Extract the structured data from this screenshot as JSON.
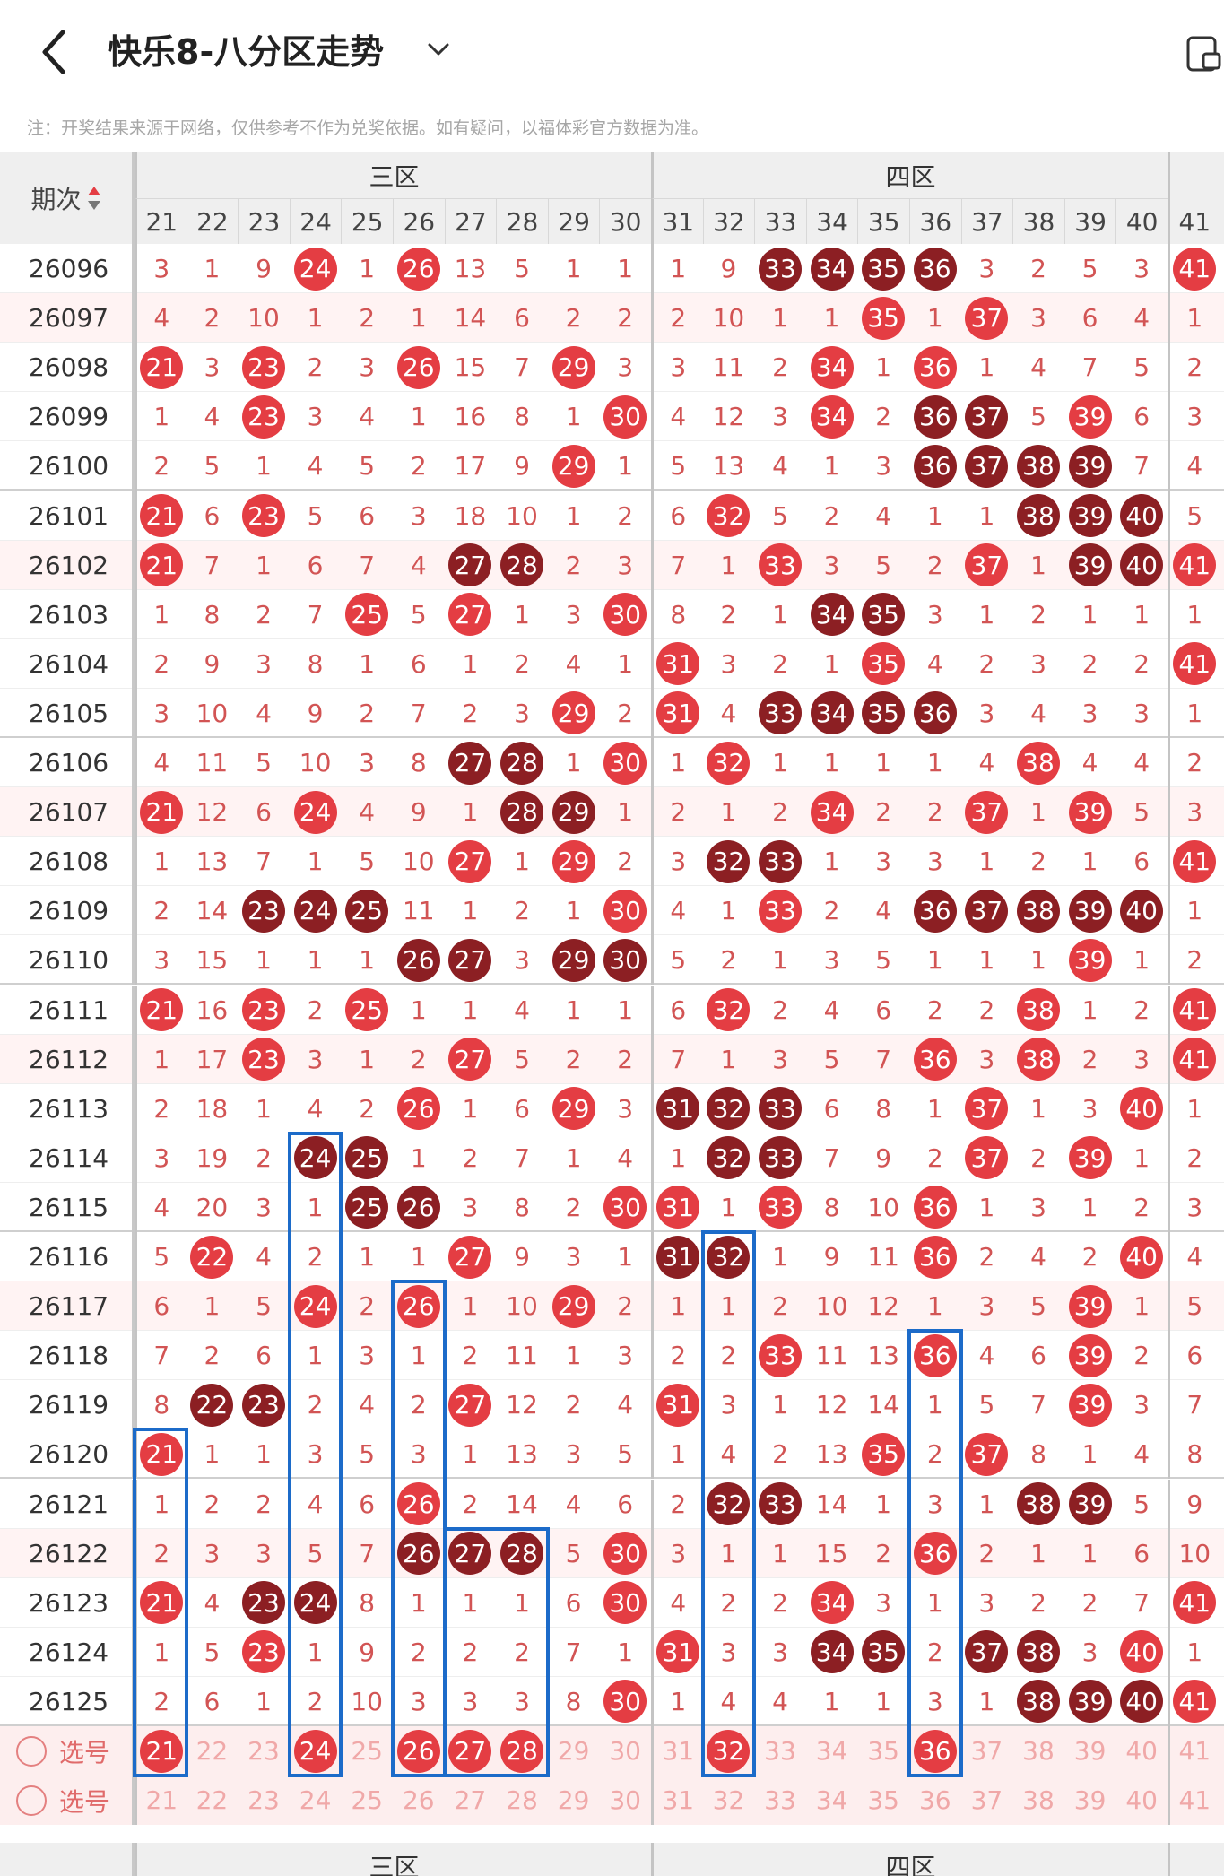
{
  "header": {
    "title": "快乐8-八分区走势",
    "icons": {
      "back": "back-chevron-icon",
      "dropdown": "chevron-down-icon",
      "page": "page-icon"
    }
  },
  "notice": "注：开奖结果来源于网络，仅供参考不作为兑奖依据。如有疑问，以福体彩官方数据为准。",
  "table": {
    "period_header": "期次",
    "zones": [
      "三区",
      "四区"
    ],
    "columns": [
      "21",
      "22",
      "23",
      "24",
      "25",
      "26",
      "27",
      "28",
      "29",
      "30",
      "31",
      "32",
      "33",
      "34",
      "35",
      "36",
      "37",
      "38",
      "39",
      "40",
      "41"
    ],
    "rows": [
      {
        "period": "26096",
        "cells": [
          "3",
          "1",
          "9",
          "24",
          "1",
          "26",
          "13",
          "5",
          "1",
          "1",
          "1",
          "9",
          "33",
          "34",
          "35",
          "36",
          "3",
          "2",
          "5",
          "3",
          "41"
        ]
      },
      {
        "period": "26097",
        "cells": [
          "4",
          "2",
          "10",
          "1",
          "2",
          "1",
          "14",
          "6",
          "2",
          "2",
          "2",
          "10",
          "1",
          "1",
          "35",
          "1",
          "37",
          "3",
          "6",
          "4",
          "1"
        ]
      },
      {
        "period": "26098",
        "cells": [
          "21",
          "3",
          "23",
          "2",
          "3",
          "26",
          "15",
          "7",
          "29",
          "3",
          "3",
          "11",
          "2",
          "34",
          "1",
          "36",
          "1",
          "4",
          "7",
          "5",
          "2"
        ]
      },
      {
        "period": "26099",
        "cells": [
          "1",
          "4",
          "23",
          "3",
          "4",
          "1",
          "16",
          "8",
          "1",
          "30",
          "4",
          "12",
          "3",
          "34",
          "2",
          "36",
          "37",
          "5",
          "39",
          "6",
          "3"
        ]
      },
      {
        "period": "26100",
        "cells": [
          "2",
          "5",
          "1",
          "4",
          "5",
          "2",
          "17",
          "9",
          "29",
          "1",
          "5",
          "13",
          "4",
          "1",
          "3",
          "36",
          "37",
          "38",
          "39",
          "7",
          "4"
        ]
      },
      {
        "period": "26101",
        "cells": [
          "21",
          "6",
          "23",
          "5",
          "6",
          "3",
          "18",
          "10",
          "1",
          "2",
          "6",
          "32",
          "5",
          "2",
          "4",
          "1",
          "1",
          "38",
          "39",
          "40",
          "5"
        ]
      },
      {
        "period": "26102",
        "cells": [
          "21",
          "7",
          "1",
          "6",
          "7",
          "4",
          "27",
          "28",
          "2",
          "3",
          "7",
          "1",
          "33",
          "3",
          "5",
          "2",
          "37",
          "1",
          "39",
          "40",
          "41"
        ]
      },
      {
        "period": "26103",
        "cells": [
          "1",
          "8",
          "2",
          "7",
          "25",
          "5",
          "27",
          "1",
          "3",
          "30",
          "8",
          "2",
          "1",
          "34",
          "35",
          "3",
          "1",
          "2",
          "1",
          "1",
          "1"
        ]
      },
      {
        "period": "26104",
        "cells": [
          "2",
          "9",
          "3",
          "8",
          "1",
          "6",
          "1",
          "2",
          "4",
          "1",
          "31",
          "3",
          "2",
          "1",
          "35",
          "4",
          "2",
          "3",
          "2",
          "2",
          "41"
        ]
      },
      {
        "period": "26105",
        "cells": [
          "3",
          "10",
          "4",
          "9",
          "2",
          "7",
          "2",
          "3",
          "29",
          "2",
          "31",
          "4",
          "33",
          "34",
          "35",
          "36",
          "3",
          "4",
          "3",
          "3",
          "1"
        ]
      },
      {
        "period": "26106",
        "cells": [
          "4",
          "11",
          "5",
          "10",
          "3",
          "8",
          "27",
          "28",
          "1",
          "30",
          "1",
          "32",
          "1",
          "1",
          "1",
          "1",
          "4",
          "38",
          "4",
          "4",
          "2"
        ]
      },
      {
        "period": "26107",
        "cells": [
          "21",
          "12",
          "6",
          "24",
          "4",
          "9",
          "1",
          "28",
          "29",
          "1",
          "2",
          "1",
          "2",
          "34",
          "2",
          "2",
          "37",
          "1",
          "39",
          "5",
          "3"
        ]
      },
      {
        "period": "26108",
        "cells": [
          "1",
          "13",
          "7",
          "1",
          "5",
          "10",
          "27",
          "1",
          "29",
          "2",
          "3",
          "32",
          "33",
          "1",
          "3",
          "3",
          "1",
          "2",
          "1",
          "6",
          "41"
        ]
      },
      {
        "period": "26109",
        "cells": [
          "2",
          "14",
          "23",
          "24",
          "25",
          "11",
          "1",
          "2",
          "1",
          "30",
          "4",
          "1",
          "33",
          "2",
          "4",
          "36",
          "37",
          "38",
          "39",
          "40",
          "1"
        ]
      },
      {
        "period": "26110",
        "cells": [
          "3",
          "15",
          "1",
          "1",
          "1",
          "26",
          "27",
          "3",
          "29",
          "30",
          "5",
          "2",
          "1",
          "3",
          "5",
          "1",
          "1",
          "1",
          "39",
          "1",
          "2"
        ]
      },
      {
        "period": "26111",
        "cells": [
          "21",
          "16",
          "23",
          "2",
          "25",
          "1",
          "1",
          "4",
          "1",
          "1",
          "6",
          "32",
          "2",
          "4",
          "6",
          "2",
          "2",
          "38",
          "1",
          "2",
          "41"
        ]
      },
      {
        "period": "26112",
        "cells": [
          "1",
          "17",
          "23",
          "3",
          "1",
          "2",
          "27",
          "5",
          "2",
          "2",
          "7",
          "1",
          "3",
          "5",
          "7",
          "36",
          "3",
          "38",
          "2",
          "3",
          "41"
        ]
      },
      {
        "period": "26113",
        "cells": [
          "2",
          "18",
          "1",
          "4",
          "2",
          "26",
          "1",
          "6",
          "29",
          "3",
          "31",
          "32",
          "33",
          "6",
          "8",
          "1",
          "37",
          "1",
          "3",
          "40",
          "1"
        ]
      },
      {
        "period": "26114",
        "cells": [
          "3",
          "19",
          "2",
          "24",
          "25",
          "1",
          "2",
          "7",
          "1",
          "4",
          "1",
          "32",
          "33",
          "7",
          "9",
          "2",
          "37",
          "2",
          "39",
          "1",
          "2"
        ]
      },
      {
        "period": "26115",
        "cells": [
          "4",
          "20",
          "3",
          "1",
          "25",
          "26",
          "3",
          "8",
          "2",
          "30",
          "31",
          "1",
          "33",
          "8",
          "10",
          "36",
          "1",
          "3",
          "1",
          "2",
          "3"
        ]
      },
      {
        "period": "26116",
        "cells": [
          "5",
          "22",
          "4",
          "2",
          "1",
          "1",
          "27",
          "9",
          "3",
          "1",
          "31",
          "32",
          "1",
          "9",
          "11",
          "36",
          "2",
          "4",
          "2",
          "40",
          "4"
        ]
      },
      {
        "period": "26117",
        "cells": [
          "6",
          "1",
          "5",
          "24",
          "2",
          "26",
          "1",
          "10",
          "29",
          "2",
          "1",
          "1",
          "2",
          "10",
          "12",
          "1",
          "3",
          "5",
          "39",
          "1",
          "5"
        ]
      },
      {
        "period": "26118",
        "cells": [
          "7",
          "2",
          "6",
          "1",
          "3",
          "1",
          "2",
          "11",
          "1",
          "3",
          "2",
          "2",
          "33",
          "11",
          "13",
          "36",
          "4",
          "6",
          "39",
          "2",
          "6"
        ]
      },
      {
        "period": "26119",
        "cells": [
          "8",
          "22",
          "23",
          "2",
          "4",
          "2",
          "27",
          "12",
          "2",
          "4",
          "31",
          "3",
          "1",
          "12",
          "14",
          "1",
          "5",
          "7",
          "39",
          "3",
          "7"
        ]
      },
      {
        "period": "26120",
        "cells": [
          "21",
          "1",
          "1",
          "3",
          "5",
          "3",
          "1",
          "13",
          "3",
          "5",
          "1",
          "4",
          "2",
          "13",
          "35",
          "2",
          "37",
          "8",
          "1",
          "4",
          "8"
        ]
      },
      {
        "period": "26121",
        "cells": [
          "1",
          "2",
          "2",
          "4",
          "6",
          "26",
          "2",
          "14",
          "4",
          "6",
          "2",
          "32",
          "33",
          "14",
          "1",
          "3",
          "1",
          "38",
          "39",
          "5",
          "9"
        ]
      },
      {
        "period": "26122",
        "cells": [
          "2",
          "3",
          "3",
          "5",
          "7",
          "26",
          "27",
          "28",
          "5",
          "30",
          "3",
          "1",
          "1",
          "15",
          "2",
          "36",
          "2",
          "1",
          "1",
          "6",
          "10"
        ]
      },
      {
        "period": "26123",
        "cells": [
          "21",
          "4",
          "23",
          "24",
          "8",
          "1",
          "1",
          "1",
          "6",
          "30",
          "4",
          "2",
          "2",
          "34",
          "3",
          "1",
          "3",
          "2",
          "2",
          "7",
          "41"
        ]
      },
      {
        "period": "26124",
        "cells": [
          "1",
          "5",
          "23",
          "1",
          "9",
          "2",
          "2",
          "2",
          "7",
          "1",
          "31",
          "3",
          "3",
          "34",
          "35",
          "2",
          "37",
          "38",
          "3",
          "40",
          "1"
        ]
      },
      {
        "period": "26125",
        "cells": [
          "2",
          "6",
          "1",
          "2",
          "10",
          "3",
          "3",
          "3",
          "8",
          "30",
          "1",
          "4",
          "4",
          "1",
          "1",
          "3",
          "1",
          "38",
          "39",
          "40",
          "41"
        ]
      }
    ],
    "pick_rows": [
      {
        "label": "选号",
        "picked": [
          "21",
          "24",
          "26",
          "27",
          "28",
          "32",
          "36"
        ]
      },
      {
        "label": "选号",
        "picked": []
      }
    ],
    "footer_zones": [
      "三区",
      "四区"
    ],
    "footer_period": "-"
  }
}
